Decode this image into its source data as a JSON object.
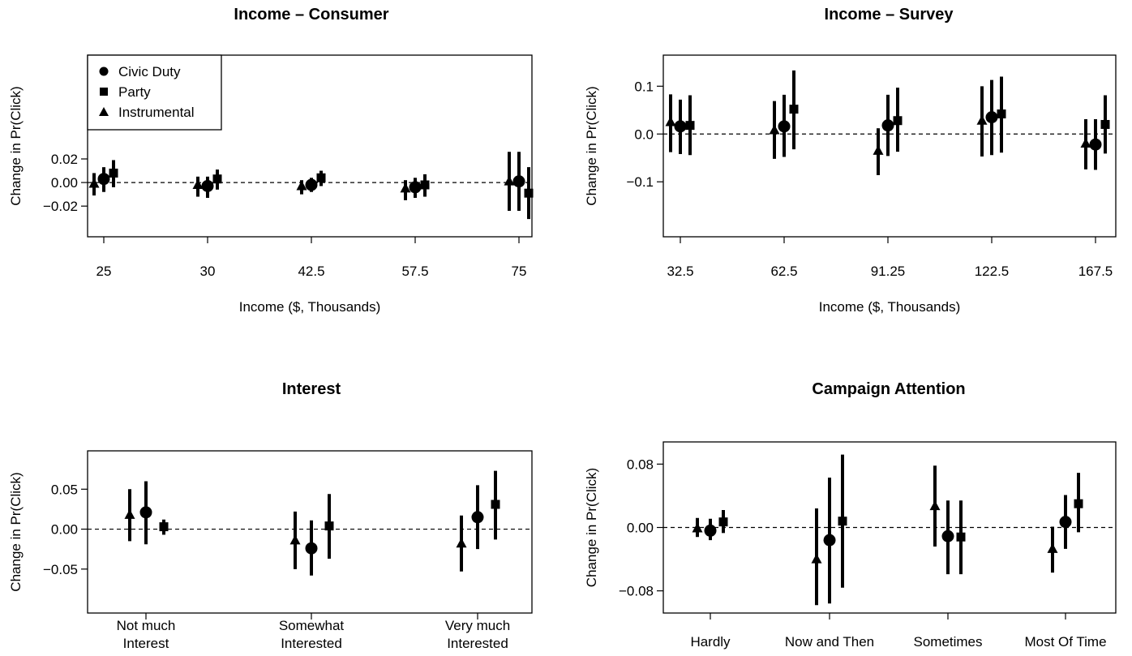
{
  "chart_data": [
    {
      "type": "scatter",
      "title": "Income – Consumer",
      "xlabel": "Income ($, Thousands)",
      "ylabel": "Change in Pr(Click)",
      "categories": [
        "25",
        "30",
        "42.5",
        "57.5",
        "75"
      ],
      "yticks": [
        "0.02",
        "0.00",
        "−0.02"
      ],
      "ytick_values": [
        0.02,
        0.0,
        -0.02
      ],
      "ylim": [
        -0.046,
        0.108
      ],
      "reference_line": 0,
      "legend": {
        "placement": "top-left",
        "entries": [
          "Civic Duty",
          "Party",
          "Instrumental"
        ]
      },
      "series": [
        {
          "name": "Instrumental",
          "marker": "triangle",
          "estimate": [
            -0.001,
            -0.002,
            -0.003,
            -0.005,
            0.001
          ],
          "lower": [
            -0.011,
            -0.012,
            -0.01,
            -0.015,
            -0.024
          ],
          "upper": [
            0.008,
            0.005,
            0.002,
            0.002,
            0.026
          ]
        },
        {
          "name": "Civic Duty",
          "marker": "circle",
          "estimate": [
            0.003,
            -0.003,
            -0.002,
            -0.004,
            0.001
          ],
          "lower": [
            -0.008,
            -0.013,
            -0.008,
            -0.013,
            -0.024
          ],
          "upper": [
            0.013,
            0.005,
            0.004,
            0.004,
            0.026
          ]
        },
        {
          "name": "Party",
          "marker": "square",
          "estimate": [
            0.008,
            0.003,
            0.004,
            -0.002,
            -0.009
          ],
          "lower": [
            -0.004,
            -0.006,
            -0.003,
            -0.012,
            -0.031
          ],
          "upper": [
            0.019,
            0.011,
            0.01,
            0.007,
            0.013
          ]
        }
      ]
    },
    {
      "type": "scatter",
      "title": "Income – Survey",
      "xlabel": "Income ($, Thousands)",
      "ylabel": "Change in Pr(Click)",
      "categories": [
        "32.5",
        "62.5",
        "91.25",
        "122.5",
        "167.5"
      ],
      "yticks": [
        "0.1",
        "0.0",
        "−0.1"
      ],
      "ytick_values": [
        0.1,
        0.0,
        -0.1
      ],
      "ylim": [
        -0.215,
        0.165
      ],
      "reference_line": 0,
      "series": [
        {
          "name": "Instrumental",
          "marker": "triangle",
          "estimate": [
            0.025,
            0.008,
            -0.035,
            0.028,
            -0.02
          ],
          "lower": [
            -0.038,
            -0.052,
            -0.086,
            -0.047,
            -0.074
          ],
          "upper": [
            0.083,
            0.069,
            0.012,
            0.1,
            0.031
          ]
        },
        {
          "name": "Civic Duty",
          "marker": "circle",
          "estimate": [
            0.016,
            0.016,
            0.018,
            0.035,
            -0.022
          ],
          "lower": [
            -0.042,
            -0.048,
            -0.046,
            -0.044,
            -0.075
          ],
          "upper": [
            0.072,
            0.082,
            0.082,
            0.113,
            0.031
          ]
        },
        {
          "name": "Party",
          "marker": "square",
          "estimate": [
            0.018,
            0.052,
            0.028,
            0.042,
            0.02
          ],
          "lower": [
            -0.044,
            -0.032,
            -0.037,
            -0.039,
            -0.041
          ],
          "upper": [
            0.081,
            0.133,
            0.097,
            0.12,
            0.081
          ]
        }
      ]
    },
    {
      "type": "scatter",
      "title": "Interest",
      "xlabel": "",
      "ylabel": "Change in Pr(Click)",
      "categories": [
        "Not much Interest",
        "Somewhat Interested",
        "Very much Interested"
      ],
      "category_lines": [
        [
          "Not much",
          "Interest"
        ],
        [
          "Somewhat",
          "Interested"
        ],
        [
          "Very much",
          "Interested"
        ]
      ],
      "yticks": [
        "0.05",
        "0.00",
        "−0.05"
      ],
      "ytick_values": [
        0.05,
        0.0,
        -0.05
      ],
      "ylim": [
        -0.105,
        0.098
      ],
      "reference_line": 0,
      "series": [
        {
          "name": "Instrumental",
          "marker": "triangle",
          "estimate": [
            0.018,
            -0.014,
            -0.018
          ],
          "lower": [
            -0.015,
            -0.05,
            -0.053
          ],
          "upper": [
            0.05,
            0.022,
            0.017
          ]
        },
        {
          "name": "Civic Duty",
          "marker": "circle",
          "estimate": [
            0.021,
            -0.024,
            0.015
          ],
          "lower": [
            -0.019,
            -0.058,
            -0.025
          ],
          "upper": [
            0.06,
            0.011,
            0.055
          ]
        },
        {
          "name": "Party",
          "marker": "square",
          "estimate": [
            0.003,
            0.004,
            0.031
          ],
          "lower": [
            -0.007,
            -0.037,
            -0.013
          ],
          "upper": [
            0.012,
            0.044,
            0.073
          ]
        }
      ]
    },
    {
      "type": "scatter",
      "title": "Campaign Attention",
      "xlabel": "",
      "ylabel": "Change in Pr(Click)",
      "categories": [
        "Hardly",
        "Now and Then",
        "Sometimes",
        "Most Of Time"
      ],
      "yticks": [
        "0.08",
        "0.00",
        "−0.08"
      ],
      "ytick_values": [
        0.08,
        0.0,
        -0.08
      ],
      "ylim": [
        -0.108,
        0.108
      ],
      "reference_line": 0,
      "series": [
        {
          "name": "Instrumental",
          "marker": "triangle",
          "estimate": [
            -0.001,
            -0.04,
            0.027,
            -0.027
          ],
          "lower": [
            -0.012,
            -0.098,
            -0.024,
            -0.057
          ],
          "upper": [
            0.012,
            0.024,
            0.078,
            0.001
          ]
        },
        {
          "name": "Civic Duty",
          "marker": "circle",
          "estimate": [
            -0.004,
            -0.016,
            -0.011,
            0.007
          ],
          "lower": [
            -0.016,
            -0.096,
            -0.059,
            -0.027
          ],
          "upper": [
            0.011,
            0.063,
            0.034,
            0.041
          ]
        },
        {
          "name": "Party",
          "marker": "square",
          "estimate": [
            0.007,
            0.008,
            -0.012,
            0.03
          ],
          "lower": [
            -0.007,
            -0.076,
            -0.059,
            -0.006
          ],
          "upper": [
            0.022,
            0.092,
            0.034,
            0.069
          ]
        }
      ]
    }
  ]
}
